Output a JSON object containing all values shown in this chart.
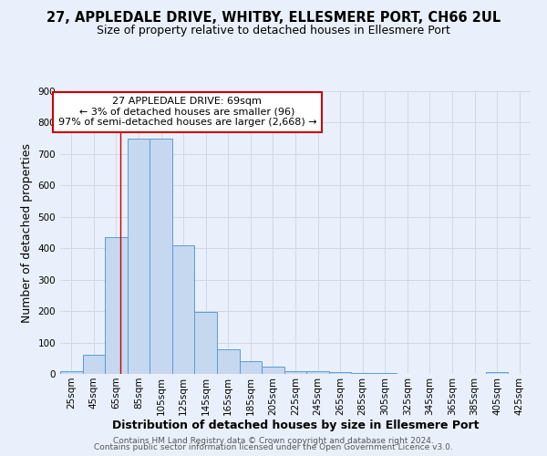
{
  "title": "27, APPLEDALE DRIVE, WHITBY, ELLESMERE PORT, CH66 2UL",
  "subtitle": "Size of property relative to detached houses in Ellesmere Port",
  "xlabel": "Distribution of detached houses by size in Ellesmere Port",
  "ylabel": "Number of detached properties",
  "bar_values": [
    10,
    60,
    435,
    750,
    750,
    410,
    198,
    78,
    42,
    22,
    10,
    8,
    5,
    3,
    2,
    1,
    0,
    0,
    0,
    5
  ],
  "bin_starts": [
    15,
    35,
    55,
    75,
    95,
    115,
    135,
    155,
    175,
    195,
    215,
    235,
    255,
    275,
    295,
    315,
    335,
    355,
    375,
    395
  ],
  "bin_width": 20,
  "tick_labels": [
    "25sqm",
    "45sqm",
    "65sqm",
    "85sqm",
    "105sqm",
    "125sqm",
    "145sqm",
    "165sqm",
    "185sqm",
    "205sqm",
    "225sqm",
    "245sqm",
    "265sqm",
    "285sqm",
    "305sqm",
    "325sqm",
    "345sqm",
    "365sqm",
    "385sqm",
    "405sqm",
    "425sqm"
  ],
  "bar_color": "#c5d8f0",
  "bar_edge_color": "#5b9bd5",
  "grid_color": "#d0d8e8",
  "background_color": "#eaf0fb",
  "vline_x": 69,
  "vline_color": "#cc0000",
  "annotation_text": "27 APPLEDALE DRIVE: 69sqm\n← 3% of detached houses are smaller (96)\n97% of semi-detached houses are larger (2,668) →",
  "annotation_box_color": "#ffffff",
  "annotation_box_edge": "#cc0000",
  "ylim": [
    0,
    900
  ],
  "yticks": [
    0,
    100,
    200,
    300,
    400,
    500,
    600,
    700,
    800,
    900
  ],
  "footer_line1": "Contains HM Land Registry data © Crown copyright and database right 2024.",
  "footer_line2": "Contains public sector information licensed under the Open Government Licence v3.0.",
  "title_fontsize": 10.5,
  "subtitle_fontsize": 9,
  "axis_label_fontsize": 9,
  "tick_fontsize": 7.5,
  "annotation_fontsize": 8,
  "footer_fontsize": 6.5
}
